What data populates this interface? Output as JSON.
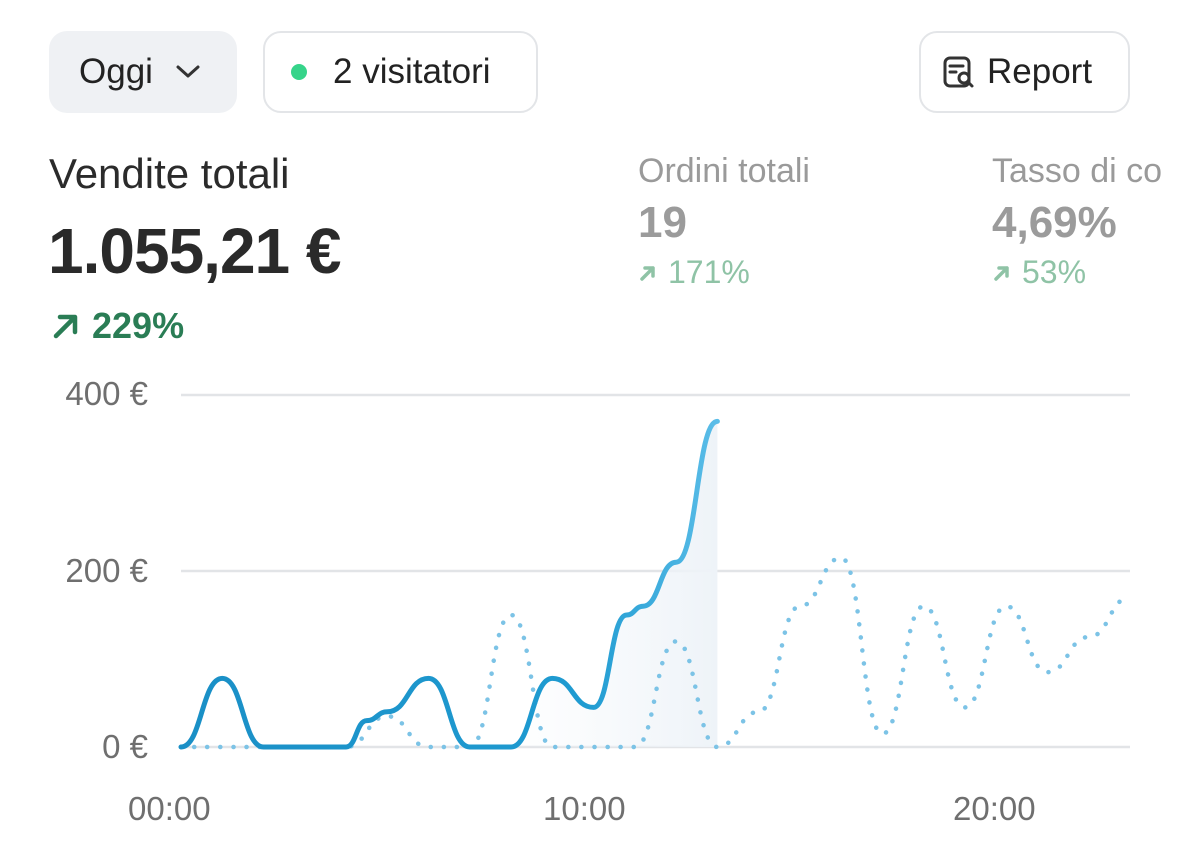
{
  "toolbar": {
    "period_label": "Oggi",
    "visitors_label": "2 visitatori",
    "report_label": "Report",
    "live_dot_color": "#36d48a"
  },
  "metrics": {
    "primary": {
      "title": "Vendite totali",
      "value": "1.055,21 €",
      "change": "229%",
      "change_direction": "up",
      "color": "#2a7d55"
    },
    "orders": {
      "title": "Ordini totali",
      "value": "19",
      "change": "171%",
      "change_direction": "up"
    },
    "conversion": {
      "title": "Tasso di co",
      "value": "4,69%",
      "change": "53%",
      "change_direction": "up"
    }
  },
  "chart_data": {
    "type": "line",
    "x_unit": "hour",
    "xlim": [
      0,
      23
    ],
    "ylim": [
      0,
      400
    ],
    "y_ticks": [
      "400 €",
      "200 €",
      "0 €"
    ],
    "y_tick_values": [
      400,
      200,
      0
    ],
    "x_ticks": [
      "00:00",
      "10:00",
      "20:00"
    ],
    "x_tick_values": [
      0,
      10,
      20
    ],
    "grid": true,
    "series": [
      {
        "style": "solid",
        "color": "#1f9bd1",
        "points": [
          [
            0,
            0
          ],
          [
            1,
            78
          ],
          [
            2,
            0
          ],
          [
            3,
            0
          ],
          [
            4,
            0
          ],
          [
            4.5,
            30
          ],
          [
            5,
            40
          ],
          [
            6,
            78
          ],
          [
            7,
            0
          ],
          [
            8,
            0
          ],
          [
            9,
            78
          ],
          [
            10,
            45
          ],
          [
            10.8,
            150
          ],
          [
            11.2,
            160
          ],
          [
            12,
            210
          ],
          [
            13,
            370
          ]
        ]
      },
      {
        "style": "dotted",
        "color": "#7cc3e6",
        "points": [
          [
            0,
            0
          ],
          [
            1,
            0
          ],
          [
            2,
            0
          ],
          [
            3,
            0
          ],
          [
            4,
            0
          ],
          [
            5,
            35
          ],
          [
            6,
            0
          ],
          [
            7,
            0
          ],
          [
            8,
            150
          ],
          [
            9,
            0
          ],
          [
            10,
            0
          ],
          [
            11,
            0
          ],
          [
            12,
            120
          ],
          [
            13,
            0
          ],
          [
            14,
            40
          ],
          [
            15,
            160
          ],
          [
            16,
            215
          ],
          [
            17,
            15
          ],
          [
            18,
            160
          ],
          [
            19,
            45
          ],
          [
            20,
            160
          ],
          [
            21,
            85
          ],
          [
            22,
            125
          ],
          [
            23,
            170
          ]
        ]
      }
    ]
  }
}
